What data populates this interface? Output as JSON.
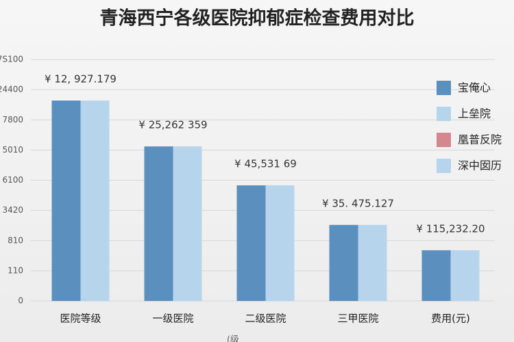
{
  "chart_data": {
    "type": "bar",
    "title": "青海西宁各级医院抑郁症检查费用对比",
    "categories": [
      "医院等级",
      "一级医院",
      "二级医院",
      "三甲医院",
      "费用(元)"
    ],
    "series": [
      {
        "name": "宝俺心",
        "color": "#5b8fbd",
        "values": [
          6.64,
          5.12,
          3.83,
          2.52,
          1.68
        ]
      },
      {
        "name": "上垒院",
        "color": "#b6d5ec",
        "values": [
          6.64,
          5.12,
          3.83,
          2.52,
          1.68
        ]
      }
    ],
    "extra_legend": [
      {
        "name": "凰普反院",
        "color": "#d4878f"
      },
      {
        "name": "深中囡历",
        "color": "#b6d5ec"
      }
    ],
    "annotations": [
      "¥ 12, 927.179",
      "¥ 25,262  359",
      "¥ 45,531  69",
      "¥ 35. 475.127",
      "¥ 115,232.20"
    ],
    "x_label": "(级",
    "ylim": [
      0,
      8
    ],
    "yticks": [
      {
        "value": 0,
        "label": "0"
      },
      {
        "value": 1,
        "label": "110"
      },
      {
        "value": 2,
        "label": "810"
      },
      {
        "value": 3,
        "label": "3420"
      },
      {
        "value": 4,
        "label": "6100"
      },
      {
        "value": 5,
        "label": "5010"
      },
      {
        "value": 6,
        "label": "7800"
      },
      {
        "value": 7,
        "label": "24400"
      },
      {
        "value": 8,
        "label": "7S100"
      }
    ],
    "grid": true
  }
}
